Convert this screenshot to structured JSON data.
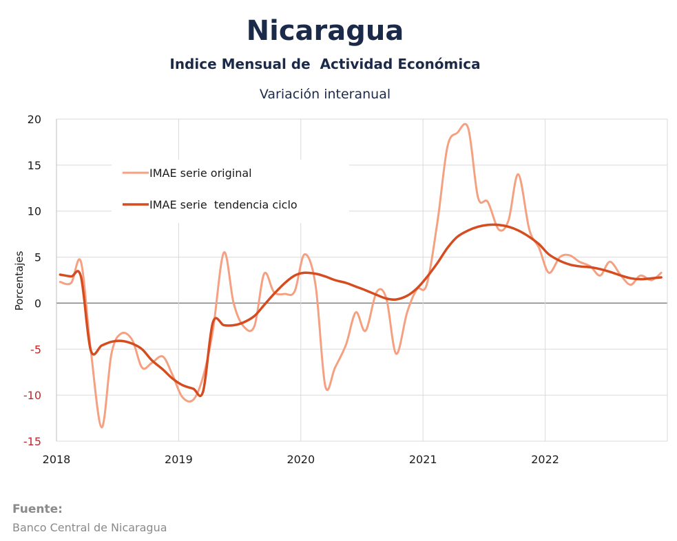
{
  "chart_data": {
    "type": "line",
    "title": "Nicaragua",
    "subtitle": "Indice Mensual de  Actividad Económica",
    "subtitle2": "Variación interanual",
    "ylabel": "Porcentajes",
    "ylim": [
      -15,
      20
    ],
    "yticks": [
      20,
      15,
      10,
      5,
      0,
      -5,
      -10,
      -15
    ],
    "ytick_labels": [
      "20",
      "15",
      "10",
      "5",
      "0",
      "-5",
      "-10",
      "-15"
    ],
    "xlim": [
      2018,
      2023
    ],
    "xticks": [
      2018,
      2019,
      2020,
      2021,
      2022
    ],
    "xtick_labels": [
      "2018",
      "2019",
      "2020",
      "2021",
      "2022"
    ],
    "grid": true,
    "legend_position": "top-left",
    "series": [
      {
        "name": "IMAE serie original",
        "color": "#f4a081",
        "x": [
          2018.03,
          2018.12,
          2018.2,
          2018.28,
          2018.37,
          2018.45,
          2018.53,
          2018.62,
          2018.7,
          2018.78,
          2018.87,
          2018.95,
          2019.03,
          2019.12,
          2019.2,
          2019.28,
          2019.37,
          2019.45,
          2019.53,
          2019.62,
          2019.7,
          2019.78,
          2019.87,
          2019.95,
          2020.03,
          2020.12,
          2020.2,
          2020.28,
          2020.37,
          2020.45,
          2020.53,
          2020.62,
          2020.7,
          2020.78,
          2020.87,
          2020.95,
          2021.03,
          2021.12,
          2021.2,
          2021.28,
          2021.37,
          2021.45,
          2021.53,
          2021.62,
          2021.7,
          2021.78,
          2021.87,
          2021.95,
          2022.03,
          2022.12,
          2022.2,
          2022.28,
          2022.37,
          2022.45,
          2022.53,
          2022.62,
          2022.7,
          2022.78,
          2022.87,
          2022.95
        ],
        "values": [
          2.3,
          2.2,
          4.5,
          -5.0,
          -13.5,
          -5.5,
          -3.3,
          -4.0,
          -7.0,
          -6.5,
          -5.8,
          -7.8,
          -10.2,
          -10.5,
          -8.0,
          -3.0,
          5.5,
          0.0,
          -2.5,
          -2.5,
          3.2,
          1.2,
          1.0,
          1.3,
          5.3,
          2.0,
          -9.0,
          -7.0,
          -4.5,
          -1.0,
          -3.0,
          1.2,
          0.5,
          -5.5,
          -1.0,
          1.5,
          2.0,
          9.0,
          17.0,
          18.5,
          19.0,
          11.5,
          11.0,
          8.0,
          9.0,
          14.0,
          8.0,
          6.0,
          3.3,
          5.0,
          5.2,
          4.5,
          4.0,
          3.0,
          4.5,
          3.0,
          2.0,
          3.0,
          2.5,
          3.3
        ]
      },
      {
        "name": "IMAE serie  tendencia ciclo",
        "color": "#d44c20",
        "x": [
          2018.03,
          2018.12,
          2018.2,
          2018.28,
          2018.37,
          2018.45,
          2018.53,
          2018.62,
          2018.7,
          2018.78,
          2018.87,
          2018.95,
          2019.03,
          2019.12,
          2019.2,
          2019.28,
          2019.37,
          2019.45,
          2019.53,
          2019.62,
          2019.7,
          2019.78,
          2019.87,
          2019.95,
          2020.03,
          2020.12,
          2020.2,
          2020.28,
          2020.37,
          2020.45,
          2020.53,
          2020.62,
          2020.7,
          2020.78,
          2020.87,
          2020.95,
          2021.03,
          2021.12,
          2021.2,
          2021.28,
          2021.37,
          2021.45,
          2021.53,
          2021.62,
          2021.7,
          2021.78,
          2021.87,
          2021.95,
          2022.03,
          2022.12,
          2022.2,
          2022.28,
          2022.37,
          2022.45,
          2022.53,
          2022.62,
          2022.7,
          2022.78,
          2022.87,
          2022.95
        ],
        "values": [
          3.1,
          2.9,
          2.9,
          -5.1,
          -4.6,
          -4.2,
          -4.1,
          -4.4,
          -5.0,
          -6.2,
          -7.2,
          -8.2,
          -8.9,
          -9.3,
          -9.6,
          -2.1,
          -2.4,
          -2.4,
          -2.1,
          -1.4,
          -0.2,
          1.0,
          2.2,
          3.0,
          3.3,
          3.2,
          2.9,
          2.5,
          2.2,
          1.8,
          1.4,
          0.9,
          0.5,
          0.4,
          0.8,
          1.6,
          2.8,
          4.4,
          6.0,
          7.2,
          7.9,
          8.3,
          8.5,
          8.5,
          8.3,
          7.9,
          7.2,
          6.4,
          5.3,
          4.6,
          4.2,
          4.0,
          3.9,
          3.7,
          3.4,
          3.0,
          2.7,
          2.6,
          2.7,
          2.8
        ]
      }
    ]
  },
  "source": {
    "label": "Fuente:",
    "text": "Banco Central de Nicaragua"
  }
}
